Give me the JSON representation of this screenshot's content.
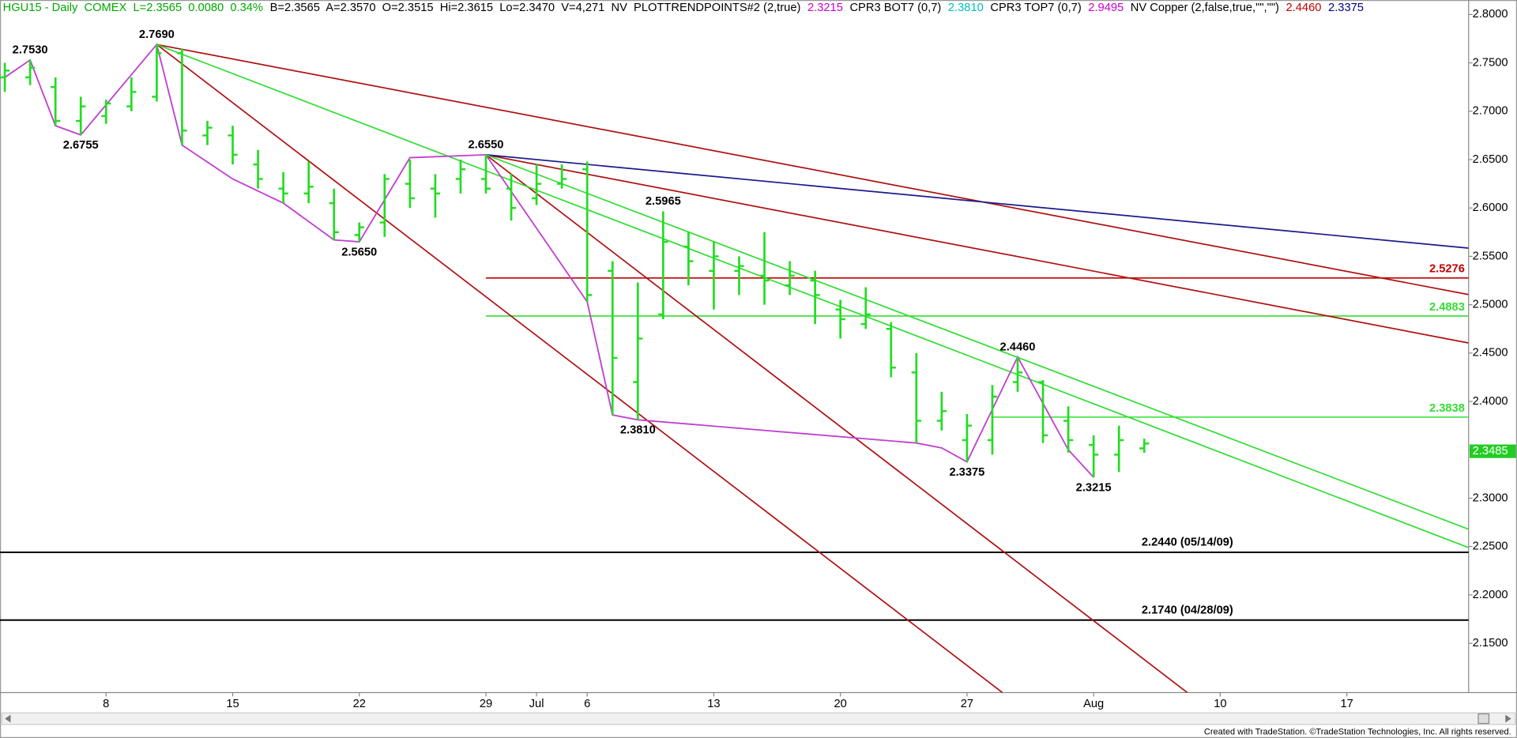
{
  "header": [
    {
      "text": "HGU15 - Daily  COMEX  L=2.3565  0.0080  0.34%",
      "color": "#00a800"
    },
    {
      "text": "B=2.3565  A=2.3570  O=2.3515  Hi=2.3615  Lo=2.3470  V=4,271  NV  PLOTTRENDPOINTS#2 (2,true)",
      "color": "#000000"
    },
    {
      "text": "2.3215",
      "color": "#cc00cc"
    },
    {
      "text": "CPR3 BOT7 (0,7)",
      "color": "#000000"
    },
    {
      "text": "2.3810",
      "color": "#00bfbf"
    },
    {
      "text": "CPR3 TOP7 (0,7)",
      "color": "#000000"
    },
    {
      "text": "2.9495",
      "color": "#cc00cc"
    },
    {
      "text": "NV Copper (2,false,true,\"\",\"\")",
      "color": "#000000"
    },
    {
      "text": "2.4460",
      "color": "#c00000"
    },
    {
      "text": "2.3375",
      "color": "#000080"
    }
  ],
  "footer": "Created with TradeStation. ©TradeStation Technologies, Inc. All rights reserved.",
  "chart_data": {
    "type": "ohlc",
    "color": "#22dd22",
    "categories": [
      null,
      null,
      null,
      null,
      "8",
      null,
      null,
      null,
      null,
      "15",
      null,
      null,
      null,
      null,
      "22",
      null,
      null,
      null,
      null,
      "29",
      null,
      "Jul",
      null,
      "6",
      null,
      null,
      null,
      null,
      "13",
      null,
      null,
      null,
      null,
      "20",
      null,
      null,
      null,
      null,
      "27",
      null,
      null,
      null,
      null,
      "Aug",
      null,
      null,
      null,
      null,
      "10",
      null,
      null,
      null,
      null,
      "17",
      null,
      null,
      null,
      null
    ],
    "open": [
      2.735,
      2.735,
      2.725,
      2.69,
      2.695,
      2.705,
      2.715,
      2.76,
      2.675,
      2.675,
      2.645,
      2.62,
      2.615,
      2.605,
      2.572,
      2.585,
      2.625,
      2.62,
      2.63,
      2.63,
      2.62,
      2.61,
      2.625,
      2.64,
      2.535,
      2.42,
      2.49,
      2.56,
      2.535,
      2.535,
      2.53,
      2.52,
      2.525,
      2.495,
      2.48,
      2.475,
      2.43,
      2.38,
      2.36,
      2.36,
      2.42,
      2.42,
      2.38,
      2.355,
      2.345,
      2.3515,
      null,
      null,
      null,
      null,
      null,
      null,
      null,
      null,
      null,
      null,
      null,
      null
    ],
    "high": [
      2.75,
      2.753,
      2.735,
      2.715,
      2.712,
      2.735,
      2.769,
      2.765,
      2.69,
      2.685,
      2.66,
      2.637,
      2.648,
      2.62,
      2.585,
      2.635,
      2.65,
      2.635,
      2.65,
      2.655,
      2.635,
      2.645,
      2.645,
      2.648,
      2.545,
      2.523,
      2.5965,
      2.575,
      2.565,
      2.55,
      2.575,
      2.545,
      2.535,
      2.505,
      2.518,
      2.482,
      2.45,
      2.41,
      2.387,
      2.417,
      2.446,
      2.422,
      2.395,
      2.365,
      2.375,
      2.3615,
      null,
      null,
      null,
      null,
      null,
      null,
      null,
      null,
      null,
      null,
      null,
      null
    ],
    "low": [
      2.72,
      2.727,
      2.685,
      2.6755,
      2.687,
      2.7,
      2.71,
      2.665,
      2.665,
      2.645,
      2.62,
      2.605,
      2.605,
      2.567,
      2.565,
      2.57,
      2.6,
      2.59,
      2.615,
      2.615,
      2.587,
      2.603,
      2.62,
      2.503,
      2.386,
      2.381,
      2.485,
      2.52,
      2.495,
      2.51,
      2.5,
      2.51,
      2.48,
      2.465,
      2.475,
      2.425,
      2.357,
      2.37,
      2.3375,
      2.345,
      2.41,
      2.357,
      2.347,
      2.3215,
      2.327,
      2.347,
      null,
      null,
      null,
      null,
      null,
      null,
      null,
      null,
      null,
      null,
      null,
      null
    ],
    "close": [
      2.742,
      2.745,
      2.69,
      2.705,
      2.708,
      2.72,
      2.76,
      2.68,
      2.683,
      2.655,
      2.63,
      2.615,
      2.622,
      2.575,
      2.58,
      2.63,
      2.61,
      2.615,
      2.64,
      2.62,
      2.6,
      2.625,
      2.63,
      2.51,
      2.445,
      2.465,
      2.565,
      2.545,
      2.55,
      2.54,
      2.525,
      2.53,
      2.51,
      2.485,
      2.49,
      2.435,
      2.38,
      2.39,
      2.375,
      2.405,
      2.43,
      2.365,
      2.36,
      2.345,
      2.36,
      2.3565,
      null,
      null,
      null,
      null,
      null,
      null,
      null,
      null,
      null,
      null,
      null,
      null
    ],
    "ylim": [
      2.099,
      2.815
    ],
    "yticks": [
      {
        "value": 2.15,
        "label": "2.1500"
      },
      {
        "value": 2.2,
        "label": "2.2000"
      },
      {
        "value": 2.25,
        "label": "2.2500"
      },
      {
        "value": 2.3,
        "label": "2.3000"
      },
      {
        "value": 2.35,
        "label": "2.3500"
      },
      {
        "value": 2.4,
        "label": "2.4000"
      },
      {
        "value": 2.45,
        "label": "2.4500"
      },
      {
        "value": 2.5,
        "label": "2.5000"
      },
      {
        "value": 2.55,
        "label": "2.5500"
      },
      {
        "value": 2.6,
        "label": "2.6000"
      },
      {
        "value": 2.65,
        "label": "2.6500"
      },
      {
        "value": 2.7,
        "label": "2.7000"
      },
      {
        "value": 2.75,
        "label": "2.7500"
      },
      {
        "value": 2.8,
        "label": "2.8000"
      }
    ],
    "pivot_line": {
      "color": "#c040d0",
      "x": [
        0,
        1,
        2,
        3,
        6,
        7,
        9,
        11,
        13,
        14,
        16,
        19,
        23,
        24,
        25,
        36,
        37,
        38,
        40,
        42,
        43
      ],
      "y": [
        2.735,
        2.753,
        2.685,
        2.6755,
        2.769,
        2.665,
        2.63,
        2.605,
        2.567,
        2.565,
        2.652,
        2.655,
        2.503,
        2.386,
        2.381,
        2.357,
        2.352,
        2.3375,
        2.446,
        2.35,
        2.3215
      ],
      "labels": [
        null,
        "2.7530",
        null,
        "2.6755",
        "2.7690",
        null,
        null,
        null,
        null,
        "2.5650",
        null,
        "2.6550",
        null,
        null,
        "2.3810",
        null,
        null,
        "2.3375",
        "2.4460",
        null,
        "2.3215"
      ]
    },
    "annotations": [
      {
        "x": 26,
        "y": 2.5965,
        "label": "2.5965"
      }
    ],
    "trendlines": [
      {
        "color": "#b01010",
        "x": [
          6,
          57.8
        ],
        "y": [
          2.769,
          2.5105
        ]
      },
      {
        "color": "#b01010",
        "x": [
          19,
          57.8
        ],
        "y": [
          2.655,
          2.4605
        ]
      },
      {
        "color": "#b01010",
        "x": [
          6,
          39.4
        ],
        "y": [
          2.769,
          2.099
        ]
      },
      {
        "color": "#b01010",
        "x": [
          19,
          46.7
        ],
        "y": [
          2.655,
          2.099
        ]
      },
      {
        "color": "#1a1a8c",
        "x": [
          19,
          57.8
        ],
        "y": [
          2.655,
          2.5585
        ]
      },
      {
        "color": "#33dd33",
        "x": [
          6,
          57.8
        ],
        "y": [
          2.769,
          2.249
        ]
      },
      {
        "color": "#33dd33",
        "x": [
          19,
          57.8
        ],
        "y": [
          2.655,
          2.268
        ]
      }
    ],
    "levels": [
      {
        "value": 2.5276,
        "label": "2.5276",
        "color": "#c00000",
        "from": 19
      },
      {
        "value": 2.4883,
        "label": "2.4883",
        "color": "#33dd33",
        "from": 19
      },
      {
        "value": 2.3838,
        "label": "2.3838",
        "color": "#33dd33",
        "from": 39
      },
      {
        "value": 2.244,
        "label": "2.2440 (05/14/09)",
        "color": "#000000"
      },
      {
        "value": 2.174,
        "label": "2.1740 (04/28/09)",
        "color": "#000000"
      }
    ],
    "last_price": {
      "value": 2.3485,
      "label": "2.3485",
      "color": "#22cc22"
    }
  }
}
